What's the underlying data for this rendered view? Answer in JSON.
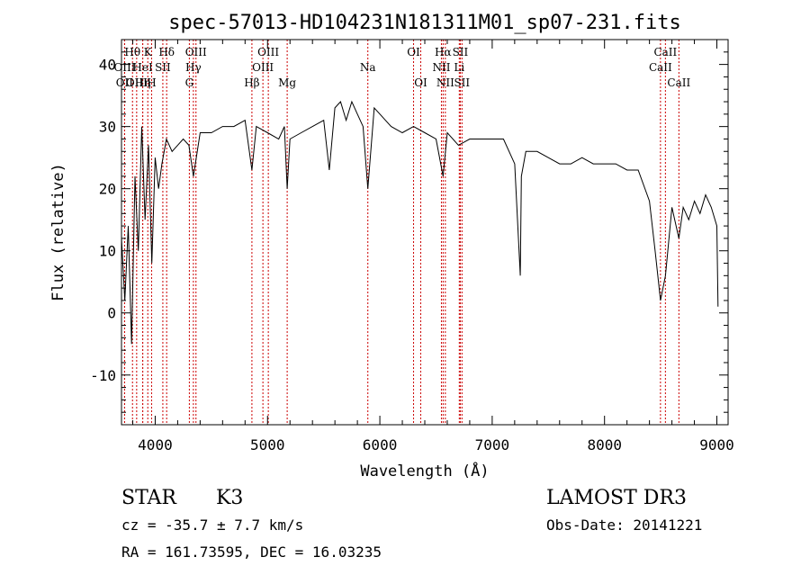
{
  "chart_data": {
    "type": "line",
    "title": "spec-57013-HD104231N181311M01_sp07-231.fits",
    "xlabel": "Wavelength (Å)",
    "ylabel": "Flux (relative)",
    "xlim": [
      3700,
      9100
    ],
    "ylim": [
      -18,
      44
    ],
    "x_ticks": [
      4000,
      5000,
      6000,
      7000,
      8000,
      9000
    ],
    "y_ticks": [
      -10,
      0,
      10,
      20,
      30,
      40
    ],
    "series": [
      {
        "name": "flux",
        "x": [
          3700,
          3730,
          3760,
          3790,
          3820,
          3850,
          3880,
          3910,
          3940,
          3970,
          4000,
          4030,
          4060,
          4100,
          4150,
          4200,
          4250,
          4300,
          4340,
          4400,
          4500,
          4600,
          4700,
          4800,
          4861,
          4900,
          5000,
          5100,
          5150,
          5175,
          5200,
          5300,
          5400,
          5500,
          5550,
          5600,
          5650,
          5700,
          5750,
          5800,
          5850,
          5893,
          5950,
          6000,
          6050,
          6100,
          6200,
          6300,
          6400,
          6500,
          6563,
          6600,
          6700,
          6800,
          6900,
          7000,
          7100,
          7200,
          7250,
          7260,
          7300,
          7400,
          7500,
          7600,
          7700,
          7800,
          7900,
          8000,
          8100,
          8200,
          8300,
          8400,
          8450,
          8498,
          8542,
          8600,
          8662,
          8700,
          8750,
          8800,
          8850,
          8900,
          8950,
          9000,
          9010
        ],
        "y": [
          12,
          2,
          14,
          -5,
          22,
          10,
          30,
          15,
          27,
          8,
          25,
          20,
          24,
          28,
          26,
          27,
          28,
          27,
          22,
          29,
          29,
          30,
          30,
          31,
          23,
          30,
          29,
          28,
          30,
          20,
          28,
          29,
          30,
          31,
          23,
          33,
          34,
          31,
          34,
          32,
          30,
          20,
          33,
          32,
          31,
          30,
          29,
          30,
          29,
          28,
          22,
          29,
          27,
          28,
          28,
          28,
          28,
          24,
          6,
          22,
          26,
          26,
          25,
          24,
          24,
          25,
          24,
          24,
          24,
          23,
          23,
          18,
          10,
          2,
          6,
          17,
          12,
          17,
          15,
          18,
          16,
          19,
          17,
          14,
          1
        ]
      }
    ],
    "lines": [
      {
        "name": "OII",
        "wavelength": 3727,
        "row": 2
      },
      {
        "name": "OIII",
        "wavelength": 3728,
        "row": 1
      },
      {
        "name": "Hθ",
        "wavelength": 3798,
        "row": 0
      },
      {
        "name": "OIII",
        "wavelength": 3835,
        "row": 2
      },
      {
        "name": "HeI",
        "wavelength": 3889,
        "row": 1
      },
      {
        "name": "Hη",
        "wavelength": 3889,
        "row": 2
      },
      {
        "name": "K",
        "wavelength": 3934,
        "row": 0
      },
      {
        "name": "H",
        "wavelength": 3968,
        "row": 2
      },
      {
        "name": "SII",
        "wavelength": 4068,
        "row": 1
      },
      {
        "name": "Hδ",
        "wavelength": 4102,
        "row": 0
      },
      {
        "name": "OIII",
        "wavelength": 4363,
        "row": 0
      },
      {
        "name": "Hγ",
        "wavelength": 4340,
        "row": 1
      },
      {
        "name": "G",
        "wavelength": 4304,
        "row": 2
      },
      {
        "name": "Hβ",
        "wavelength": 4861,
        "row": 2
      },
      {
        "name": "OIII",
        "wavelength": 5007,
        "row": 0
      },
      {
        "name": "OIII",
        "wavelength": 4959,
        "row": 1
      },
      {
        "name": "Mg",
        "wavelength": 5175,
        "row": 2
      },
      {
        "name": "Na",
        "wavelength": 5893,
        "row": 1
      },
      {
        "name": "OI",
        "wavelength": 6300,
        "row": 0
      },
      {
        "name": "OI",
        "wavelength": 6364,
        "row": 2
      },
      {
        "name": "Hα",
        "wavelength": 6563,
        "row": 0
      },
      {
        "name": "SII",
        "wavelength": 6716,
        "row": 0
      },
      {
        "name": "NII",
        "wavelength": 6548,
        "row": 1
      },
      {
        "name": "NII",
        "wavelength": 6583,
        "row": 2
      },
      {
        "name": "Li",
        "wavelength": 6707,
        "row": 1
      },
      {
        "name": "SII",
        "wavelength": 6731,
        "row": 2
      },
      {
        "name": "CaII",
        "wavelength": 8542,
        "row": 0
      },
      {
        "name": "CaII",
        "wavelength": 8498,
        "row": 1
      },
      {
        "name": "CaII",
        "wavelength": 8662,
        "row": 2
      }
    ],
    "annotations": {
      "class": "STAR",
      "subclass": "K3",
      "survey": "LAMOST DR3",
      "redshift": "cz = -35.7 ± 7.7 km/s",
      "obs_date": "Obs-Date: 20141221",
      "coords": "RA = 161.73595, DEC =  16.03235"
    },
    "colors": {
      "spectrum": "#000000",
      "line_markers": "#cc0000",
      "axes": "#000000",
      "background": "#ffffff"
    }
  }
}
